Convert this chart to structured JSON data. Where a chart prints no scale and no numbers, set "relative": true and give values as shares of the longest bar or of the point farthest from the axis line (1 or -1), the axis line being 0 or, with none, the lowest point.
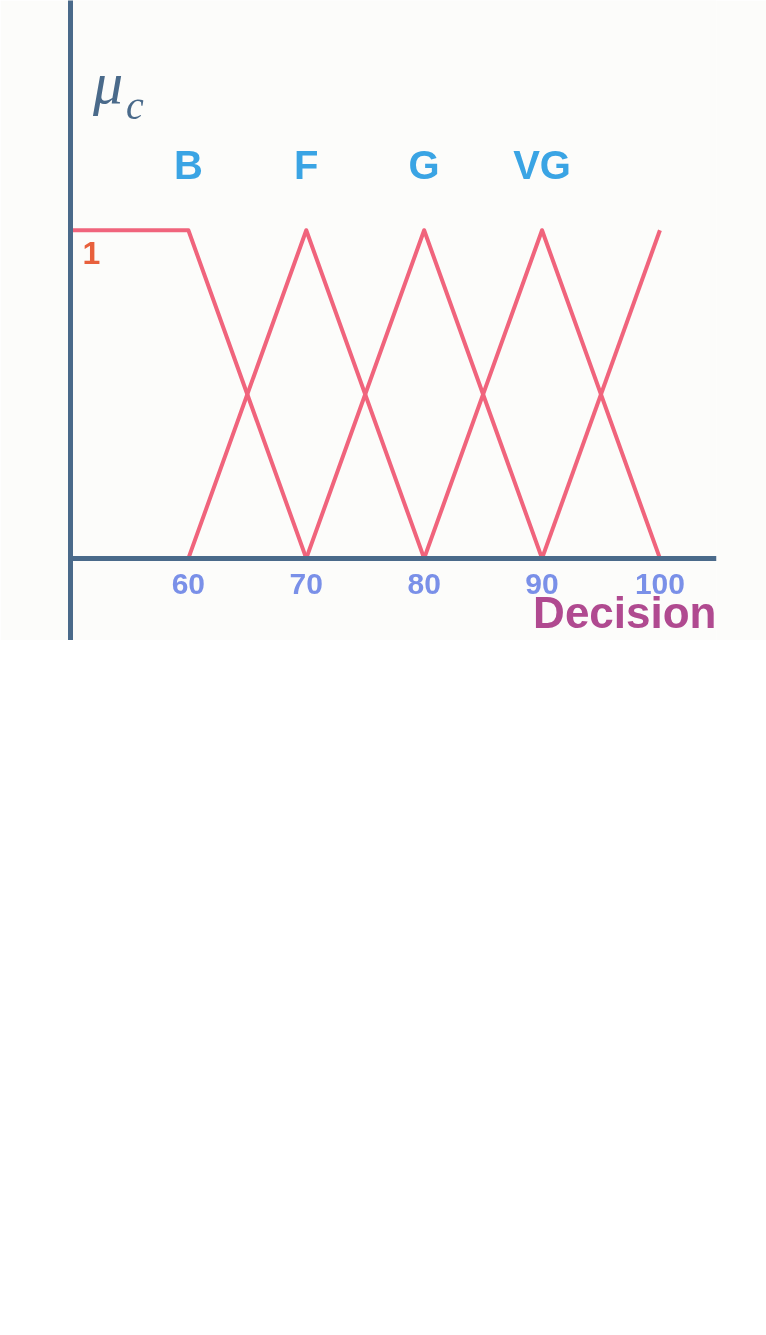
{
  "chart_data": {
    "type": "line",
    "xlabel": "Decision",
    "ylabel": "μ$_{c}$",
    "relative": true,
    "xlim": [
      50,
      104.8
    ],
    "xticks": [
      60,
      70,
      80,
      90,
      100
    ],
    "series": [
      {
        "name": "B",
        "color": "#f0647c",
        "x": [
          50,
          60,
          70
        ],
        "values": [
          1,
          1,
          0
        ]
      },
      {
        "name": "F",
        "color": "#f0647c",
        "x": [
          60,
          70,
          80
        ],
        "values": [
          0,
          1,
          0
        ]
      },
      {
        "name": "G",
        "color": "#f0647c",
        "x": [
          70,
          80,
          90
        ],
        "values": [
          0,
          1,
          0
        ]
      },
      {
        "name": "VG",
        "color": "#f0647c",
        "x": [
          80,
          90,
          100
        ],
        "values": [
          0,
          1,
          0
        ]
      },
      {
        "color": "#f0647c",
        "x": [
          90,
          100
        ],
        "values": [
          0,
          1
        ]
      }
    ],
    "annotations": [
      "1"
    ],
    "marker": "none",
    "line_style": "solid"
  }
}
